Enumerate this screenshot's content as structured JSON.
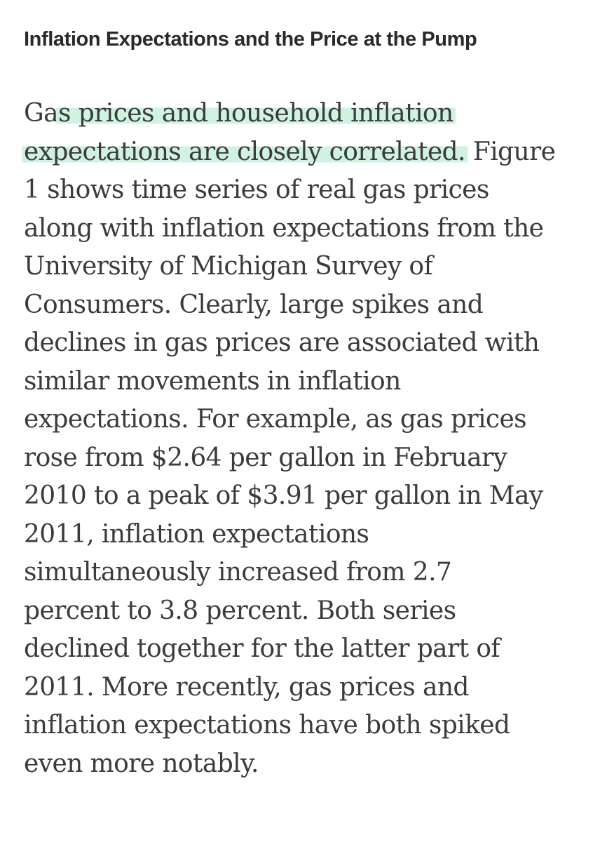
{
  "article": {
    "heading": "Inflation Expectations and the Price at the Pump",
    "highlight_color": "#cdf2de",
    "paragraph_lines": [
      {
        "pre": "Ga",
        "highlight": "s prices and household inflation",
        "post": ""
      },
      {
        "pre": "",
        "highlight": "expectations are closely correlated.",
        "post": " Figure"
      },
      {
        "pre": "1 shows time series of real gas prices",
        "highlight": "",
        "post": ""
      },
      {
        "pre": "along with inflation expectations from the",
        "highlight": "",
        "post": ""
      },
      {
        "pre": "University of Michigan Survey of",
        "highlight": "",
        "post": ""
      },
      {
        "pre": "Consumers. Clearly, large spikes and",
        "highlight": "",
        "post": ""
      },
      {
        "pre": "declines in gas prices are associated with",
        "highlight": "",
        "post": ""
      },
      {
        "pre": "similar movements in inflation",
        "highlight": "",
        "post": ""
      },
      {
        "pre": "expectations. For example, as gas prices",
        "highlight": "",
        "post": ""
      },
      {
        "pre": "rose from $2.64 per gallon in February",
        "highlight": "",
        "post": ""
      },
      {
        "pre": "2010 to a peak of $3.91 per gallon in May",
        "highlight": "",
        "post": ""
      },
      {
        "pre": "2011, inflation expectations",
        "highlight": "",
        "post": ""
      },
      {
        "pre": "simultaneously increased from 2.7",
        "highlight": "",
        "post": ""
      },
      {
        "pre": "percent to 3.8 percent. Both series",
        "highlight": "",
        "post": ""
      },
      {
        "pre": "declined together for the latter part of",
        "highlight": "",
        "post": ""
      },
      {
        "pre": "2011. More recently, gas prices and",
        "highlight": "",
        "post": ""
      },
      {
        "pre": "inflation expectations have both spiked",
        "highlight": "",
        "post": ""
      },
      {
        "pre": "even more notably.",
        "highlight": "",
        "post": ""
      }
    ]
  }
}
